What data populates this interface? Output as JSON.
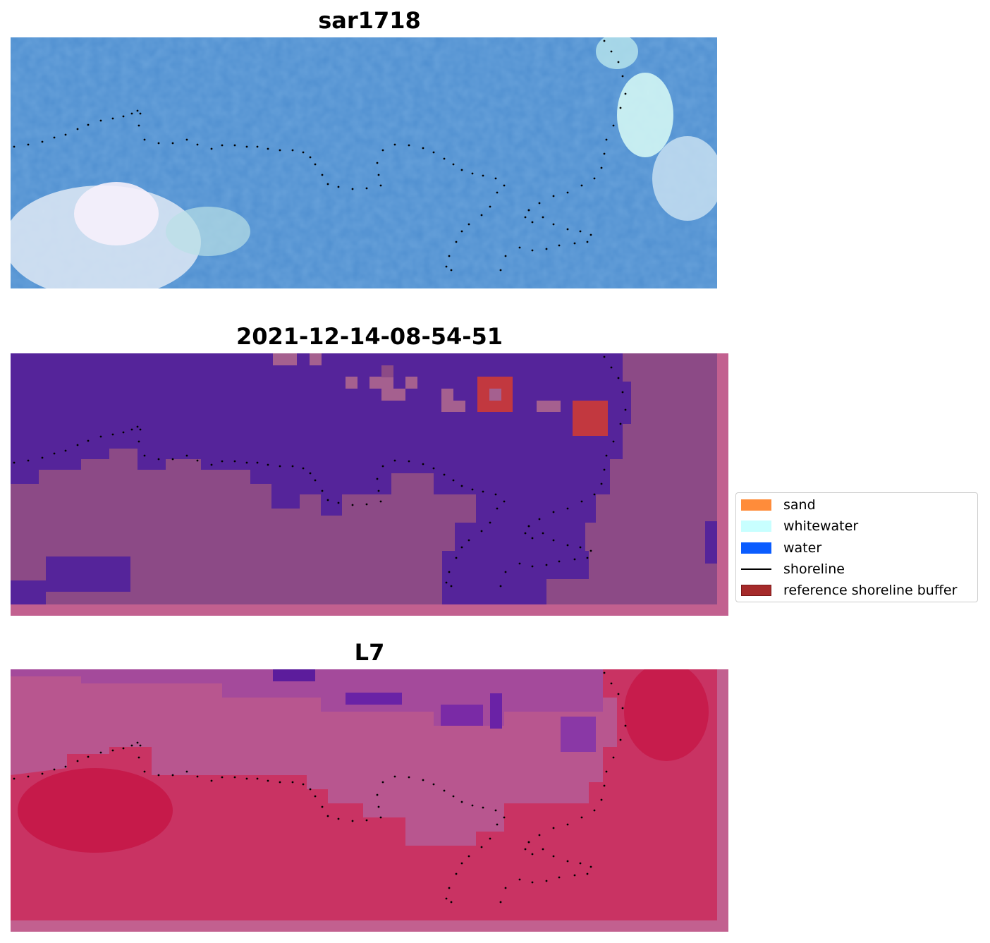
{
  "figure": {
    "panels": [
      {
        "title": "sar1718"
      },
      {
        "title": "2021-12-14-08-54-51"
      },
      {
        "title": "L7"
      }
    ],
    "legend": {
      "items": [
        {
          "label": "sand",
          "color": "#ff8c3a",
          "kind": "patch"
        },
        {
          "label": "whitewater",
          "color": "#c8ffff",
          "kind": "patch"
        },
        {
          "label": "water",
          "color": "#0a5cff",
          "kind": "patch"
        },
        {
          "label": "shoreline",
          "color": "#000000",
          "kind": "line"
        },
        {
          "label": "reference shoreline buffer",
          "color": "#a52a2a",
          "kind": "patch"
        }
      ]
    }
  }
}
